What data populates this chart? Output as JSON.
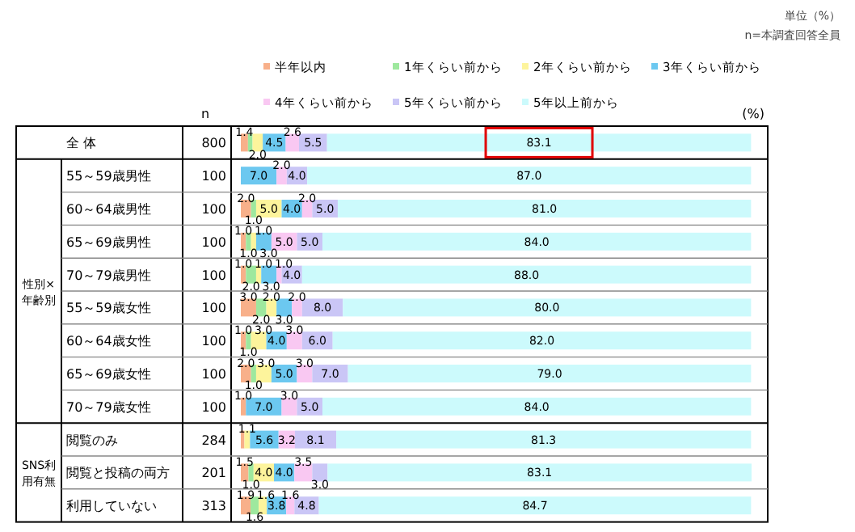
{
  "chart_data": {
    "type": "bar",
    "orientation": "horizontal",
    "stacked": true,
    "legend": "top",
    "categories": [
      "全 体",
      "55～59歳男性",
      "60～64歳男性",
      "65～69歳男性",
      "70～79歳男性",
      "55～59歳女性",
      "60～64歳女性",
      "65～69歳女性",
      "70～79歳女性",
      "閲覧のみ",
      "閲覧と投稿の両方",
      "利用していない"
    ],
    "series": [
      {
        "name": "半年以内",
        "color": "#f8b08a",
        "values": [
          1.4,
          0,
          2.0,
          1.0,
          1.0,
          3.0,
          1.0,
          2.0,
          1.0,
          0.7,
          1.5,
          1.9
        ],
        "value_labels": [
          "1.4",
          null,
          "2.0",
          "1.0",
          "1.0",
          "3.0",
          "1.0",
          "2.0",
          "1.0",
          null,
          "1.5",
          "1.9"
        ]
      },
      {
        "name": "1年くらい前から",
        "color": "#9ee89e",
        "values": [
          0.9,
          0,
          1.0,
          1.0,
          2.0,
          2.0,
          1.0,
          1.0,
          0,
          0,
          1.0,
          1.6
        ],
        "value_labels": [
          null,
          null,
          "1.0",
          "1.0",
          "2.0",
          "2.0",
          "1.0",
          "1.0",
          null,
          null,
          "1.0",
          "1.6"
        ]
      },
      {
        "name": "2年くらい前から",
        "color": "#fdf49c",
        "values": [
          2.0,
          0,
          5.0,
          1.0,
          1.0,
          2.0,
          3.0,
          3.0,
          0,
          1.1,
          4.0,
          1.6
        ],
        "value_labels": [
          "2.0",
          null,
          "5.0",
          "1.0",
          "1.0",
          "2.0",
          "3.0",
          "3.0",
          null,
          "1.1",
          "4.0",
          "1.6"
        ]
      },
      {
        "name": "3年くらい前から",
        "color": "#6cc8f0",
        "values": [
          4.5,
          7.0,
          4.0,
          3.0,
          3.0,
          3.0,
          4.0,
          5.0,
          7.0,
          5.6,
          4.0,
          3.8
        ],
        "value_labels": [
          "4.5",
          "7.0",
          "4.0",
          "3.0",
          "3.0",
          "3.0",
          "4.0",
          "5.0",
          "7.0",
          "5.6",
          "4.0",
          "3.8"
        ]
      },
      {
        "name": "4年くらい前から",
        "color": "#f9c8f2",
        "values": [
          2.6,
          2.0,
          2.0,
          5.0,
          1.0,
          2.0,
          3.0,
          3.0,
          3.0,
          3.2,
          3.5,
          1.6
        ],
        "value_labels": [
          "2.6",
          "2.0",
          "2.0",
          "5.0",
          "1.0",
          "2.0",
          "3.0",
          "3.0",
          "3.0",
          "3.2",
          "3.5",
          "1.6"
        ]
      },
      {
        "name": "5年くらい前から",
        "color": "#cac6f6",
        "values": [
          5.5,
          4.0,
          5.0,
          5.0,
          4.0,
          8.0,
          6.0,
          7.0,
          5.0,
          8.1,
          3.0,
          4.8
        ],
        "value_labels": [
          "5.5",
          "4.0",
          "5.0",
          "5.0",
          "4.0",
          "8.0",
          "6.0",
          "7.0",
          "5.0",
          "8.1",
          "3.0",
          "4.8"
        ]
      },
      {
        "name": "5年以上前から",
        "color": "#ccfafc",
        "values": [
          83.1,
          87.0,
          81.0,
          84.0,
          88.0,
          80.0,
          82.0,
          79.0,
          84.0,
          81.3,
          83.1,
          84.7
        ],
        "value_labels": [
          "83.1",
          "87.0",
          "81.0",
          "84.0",
          "88.0",
          "80.0",
          "82.0",
          "79.0",
          "84.0",
          "81.3",
          "83.1",
          "84.7"
        ]
      }
    ],
    "annotations": [
      "単位（%）",
      "n=本調査回答全員",
      "(%)",
      "n",
      "800",
      "100",
      "100",
      "100",
      "100",
      "100",
      "100",
      "100",
      "100",
      "284",
      "201",
      "313",
      "性別×年齢別",
      "SNS利用有無"
    ]
  }
}
